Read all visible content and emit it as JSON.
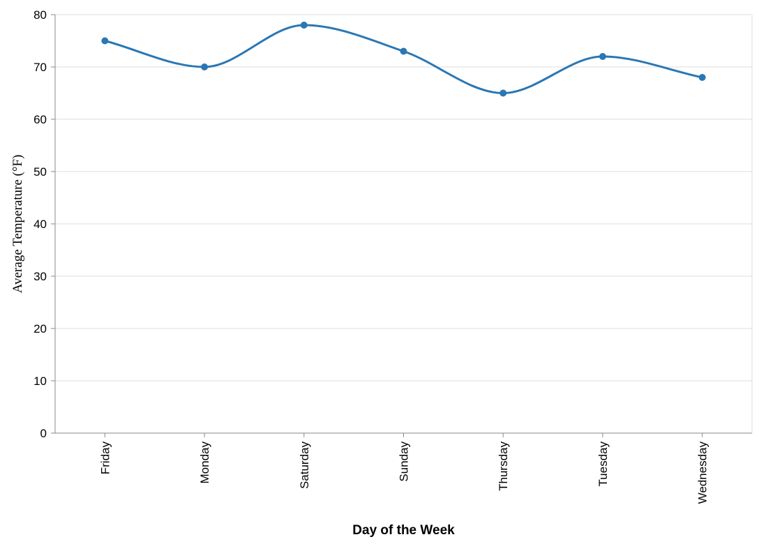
{
  "chart_data": {
    "type": "line",
    "title": "",
    "xlabel": "Day of the Week",
    "ylabel": "Average Temperature (°F)",
    "categories": [
      "Friday",
      "Monday",
      "Saturday",
      "Sunday",
      "Thursday",
      "Tuesday",
      "Wednesday"
    ],
    "series": [
      {
        "values": [
          75,
          70,
          78,
          73,
          65,
          72,
          68
        ]
      }
    ],
    "ylim": [
      0,
      80
    ],
    "yticks": [
      0,
      10,
      20,
      30,
      40,
      50,
      60,
      70,
      80
    ],
    "interpolation": "smooth",
    "point_markers": true,
    "grid": "horizontal",
    "legend": "none",
    "colors": {
      "line": "#2a77b4",
      "grid": "#dddddd",
      "axis": "#888888",
      "text": "#000000"
    }
  }
}
